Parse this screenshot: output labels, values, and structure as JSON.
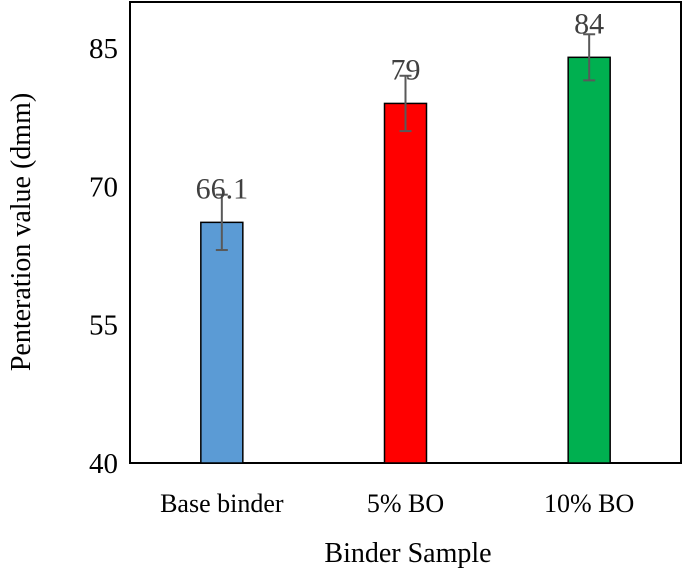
{
  "chart_data": {
    "type": "bar",
    "title": "",
    "xlabel": "Binder Sample",
    "ylabel": "Penteration value (dmm)",
    "ylim": [
      40,
      90
    ],
    "yticks": [
      40,
      55,
      70,
      85
    ],
    "grid": false,
    "legend": "none",
    "categories": [
      "Base binder",
      "5% BO",
      "10% BO"
    ],
    "values": [
      66.1,
      79,
      84
    ],
    "data_labels": [
      "66.1",
      "79",
      "84"
    ],
    "error": [
      3,
      3,
      2.5
    ],
    "colors": [
      "#5b9bd5",
      "#ff0000",
      "#00b050"
    ]
  }
}
